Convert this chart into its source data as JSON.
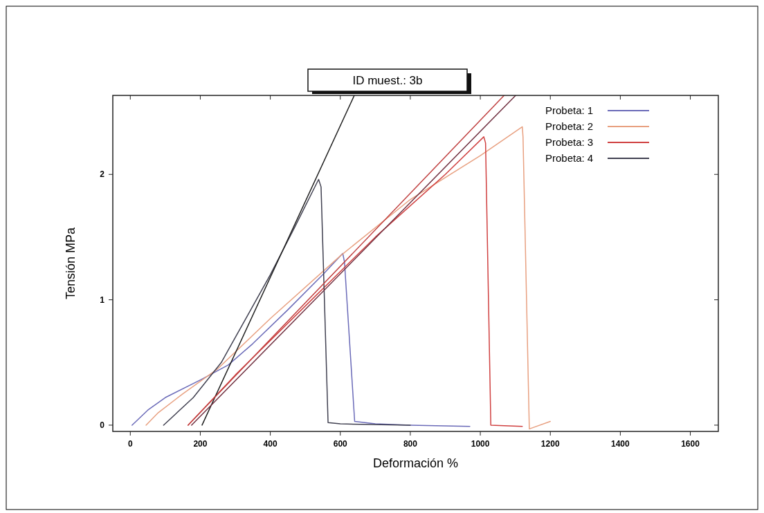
{
  "chart_data": {
    "type": "line",
    "title": "ID muest.: 3b",
    "xlabel": "Deformación %",
    "ylabel": "Tensión MPa",
    "xlim": [
      -50,
      1680
    ],
    "ylim": [
      -0.05,
      2.63
    ],
    "xticks": [
      0,
      200,
      400,
      600,
      800,
      1000,
      1200,
      1400,
      1600
    ],
    "yticks": [
      0,
      1,
      2
    ],
    "legend": "top right",
    "grid": false,
    "series": [
      {
        "name": "Probeta: 1",
        "color": "#6a6ab8",
        "x": [
          5,
          50,
          100,
          200,
          280,
          350,
          450,
          550,
          607,
          612,
          641,
          700,
          800,
          970
        ],
        "values": [
          0,
          0.12,
          0.22,
          0.36,
          0.48,
          0.65,
          0.92,
          1.2,
          1.37,
          1.3,
          0.03,
          0.01,
          0.0,
          -0.01
        ]
      },
      {
        "name": "Probeta: 2",
        "color": "#e8a080",
        "x": [
          45,
          80,
          150,
          250,
          400,
          600,
          800,
          1000,
          1120,
          1122,
          1140,
          1200
        ],
        "values": [
          0,
          0.1,
          0.25,
          0.45,
          0.85,
          1.35,
          1.8,
          2.15,
          2.38,
          2.3,
          -0.03,
          0.03
        ]
      },
      {
        "name": "Probeta: 3",
        "color": "#d04040",
        "x": [
          165,
          300,
          500,
          700,
          900,
          1010,
          1015,
          1030,
          1120
        ],
        "values": [
          0,
          0.4,
          0.95,
          1.5,
          2.0,
          2.3,
          2.25,
          0.0,
          -0.01
        ]
      },
      {
        "name": "Probeta: 4",
        "color": "#404050",
        "x": [
          95,
          180,
          260,
          330,
          400,
          470,
          538,
          545,
          565,
          600,
          800
        ],
        "values": [
          0,
          0.22,
          0.5,
          0.85,
          1.2,
          1.58,
          1.96,
          1.9,
          0.02,
          0.01,
          0.0
        ]
      },
      {
        "color": "#202020",
        "x": [
          205,
          640
        ],
        "values": [
          0,
          2.63
        ]
      },
      {
        "color": "#c04040",
        "x": [
          165,
          1068
        ],
        "values": [
          0,
          2.63
        ]
      },
      {
        "color": "#703040",
        "x": [
          175,
          1101
        ],
        "values": [
          0,
          2.63
        ]
      }
    ]
  }
}
